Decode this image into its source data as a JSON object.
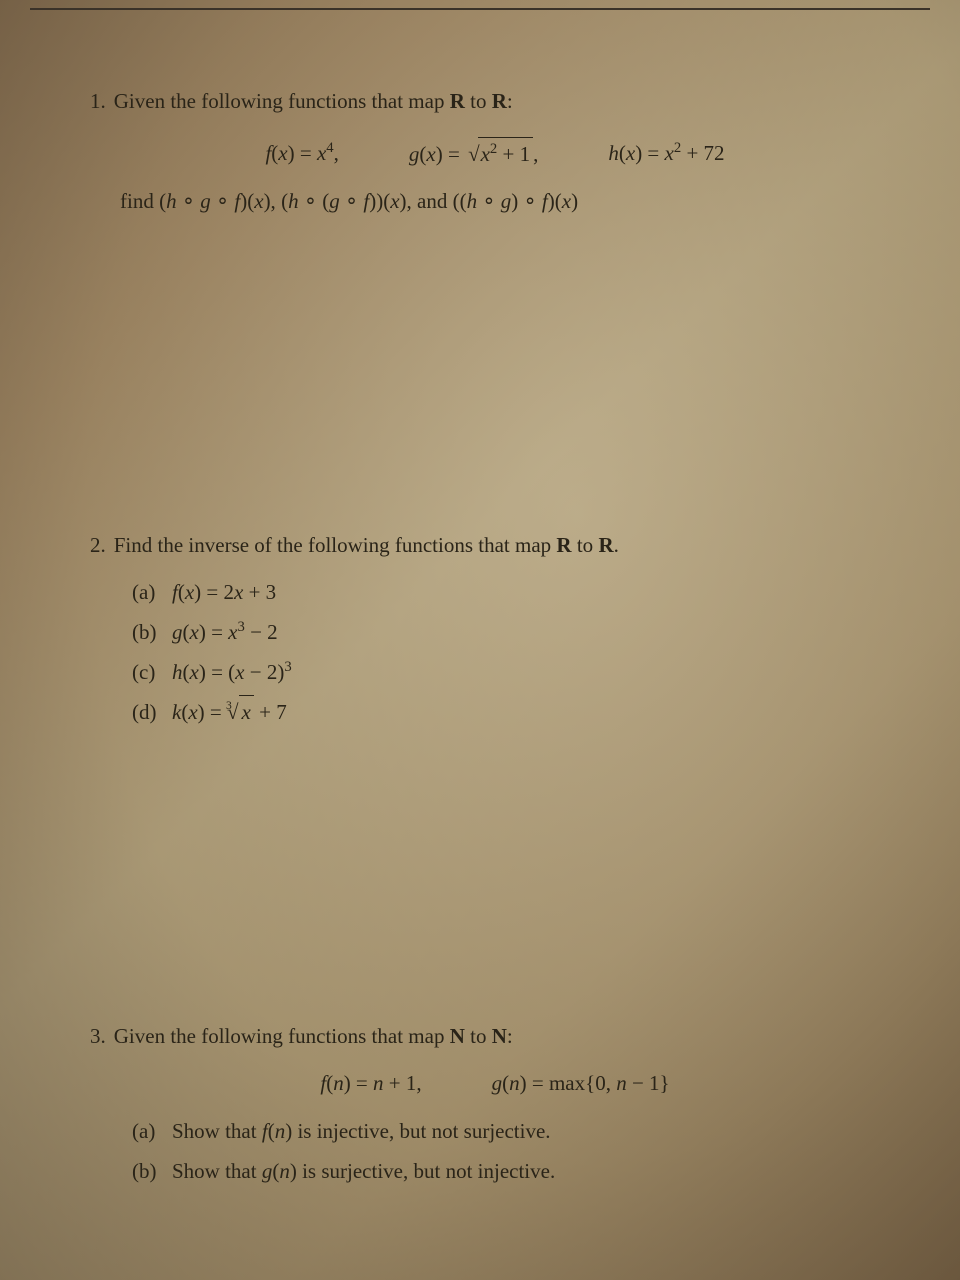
{
  "page": {
    "background_gradient": [
      "#8a7355",
      "#a08865",
      "#b5a580",
      "#a89570",
      "#7a6548"
    ],
    "text_color": "#2a2418",
    "font_family": "Times New Roman",
    "base_fontsize": 21
  },
  "problem1": {
    "number": "1.",
    "intro": "Given the following functions that map",
    "domain_from": "R",
    "to_word": "to",
    "domain_to": "R",
    "colon": ":",
    "f_def": "f(x) = x⁴,",
    "g_def_prefix": "g(x) = ",
    "g_def_sqrt": "x² + 1",
    "g_def_suffix": ",",
    "h_def": "h(x) = x² + 72",
    "find_prefix": "find",
    "comp1": "(h ∘ g ∘ f)(x)",
    "comp2": "(h ∘ (g ∘ f))(x)",
    "and_word": "and",
    "comp3": "((h ∘ g) ∘ f)(x)"
  },
  "problem2": {
    "number": "2.",
    "intro": "Find the inverse of the following functions that map",
    "domain_from": "R",
    "to_word": "to",
    "domain_to": "R",
    "period": ".",
    "parts": {
      "a": {
        "label": "(a)",
        "expr": "f(x) = 2x + 3"
      },
      "b": {
        "label": "(b)",
        "expr": "g(x) = x³ − 2"
      },
      "c": {
        "label": "(c)",
        "expr": "h(x) = (x − 2)³"
      },
      "d": {
        "label": "(d)",
        "prefix": "k(x) = ",
        "root_index": "3",
        "root_content": "x",
        "suffix": " + 7"
      }
    }
  },
  "problem3": {
    "number": "3.",
    "intro": "Given the following functions that map",
    "domain_from": "N",
    "to_word": "to",
    "domain_to": "N",
    "colon": ":",
    "f_def": "f(n) = n + 1,",
    "g_def": "g(n) = max{0, n − 1}",
    "parts": {
      "a": {
        "label": "(a)",
        "text_before": "Show that ",
        "fn": "f(n)",
        "text_after": " is injective, but not surjective."
      },
      "b": {
        "label": "(b)",
        "text_before": "Show that ",
        "fn": "g(n)",
        "text_after": " is surjective, but not injective."
      }
    }
  }
}
